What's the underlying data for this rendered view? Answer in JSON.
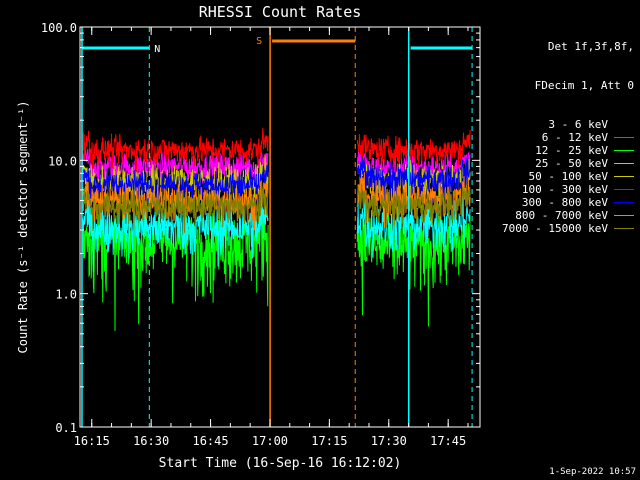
{
  "chart_data": {
    "type": "line",
    "title": "RHESSI Count Rates",
    "xlabel": "Start Time (16-Sep-16 16:12:02)",
    "ylabel": "Count Rate (s⁻¹ detector segment⁻¹)",
    "yscale": "log",
    "xlim_minutes_after_1612": [
      0,
      101
    ],
    "ylim": [
      0.1,
      100.0
    ],
    "x_ticks": [
      "16:15",
      "16:30",
      "16:45",
      "17:00",
      "17:15",
      "17:30",
      "17:45"
    ],
    "y_ticks": [
      "0.1",
      "1.0",
      "10.0",
      "100.0"
    ],
    "data_gaps_minutes_after_1612": [
      [
        47.5,
        70.0
      ]
    ],
    "series": [
      {
        "name": "3 - 6 keV",
        "color": "#000000",
        "level_before_gap": 10.5,
        "level_after_gap": 10.0
      },
      {
        "name": "6 - 12 keV",
        "color": "#ff00ff",
        "level_before_gap": 9.0,
        "level_after_gap": 8.8
      },
      {
        "name": "12 - 25 keV",
        "color": "#00ff00",
        "level_before_gap": 2.5,
        "level_after_gap": 2.3
      },
      {
        "name": "25 - 50 keV",
        "color": "#00ffff",
        "level_before_gap": 3.2,
        "level_after_gap": 3.3
      },
      {
        "name": "50 - 100 keV",
        "color": "#cccc00",
        "level_before_gap": 7.0,
        "level_after_gap": 7.0
      },
      {
        "name": "100 - 300 keV",
        "color": "#ff0000",
        "level_before_gap": 12.0,
        "level_after_gap": 12.0
      },
      {
        "name": "300 - 800 keV",
        "color": "#0000ff",
        "level_before_gap": 6.5,
        "level_after_gap": 7.2
      },
      {
        "name": "800 - 7000 keV",
        "color": "#ff8000",
        "level_before_gap": 5.0,
        "level_after_gap": 5.2
      },
      {
        "name": "7000 - 15000 keV",
        "color": "#808000",
        "level_before_gap": 4.5,
        "level_after_gap": 4.6
      }
    ],
    "annotations": [
      {
        "label": "N",
        "color": "#00ffff",
        "start_min": 0,
        "end_min": 17.5
      },
      {
        "label": "",
        "color": "#00ffff",
        "start_min": 83,
        "end_min": 99
      }
    ],
    "saa_annotation": {
      "label": "S",
      "color": "#ff8000",
      "start_min": 48,
      "end_min": 69.5
    },
    "vertical_markers": [
      {
        "minute": 0.5,
        "color": "#00ffff",
        "style": "solid"
      },
      {
        "minute": 17.5,
        "color": "#00ffff",
        "style": "dashed"
      },
      {
        "minute": 48,
        "color": "#ff8000",
        "style": "solid"
      },
      {
        "minute": 69.5,
        "color": "#ff8000",
        "style": "dashed"
      },
      {
        "minute": 83,
        "color": "#00ffff",
        "style": "solid"
      },
      {
        "minute": 99,
        "color": "#00ffff",
        "style": "dashed"
      }
    ],
    "legend_header": [
      "Det 1f,3f,8f,",
      "FDecim 1, Att 0"
    ],
    "legend_placement": "top-right outside"
  },
  "timestamp": "1-Sep-2022 10:57"
}
